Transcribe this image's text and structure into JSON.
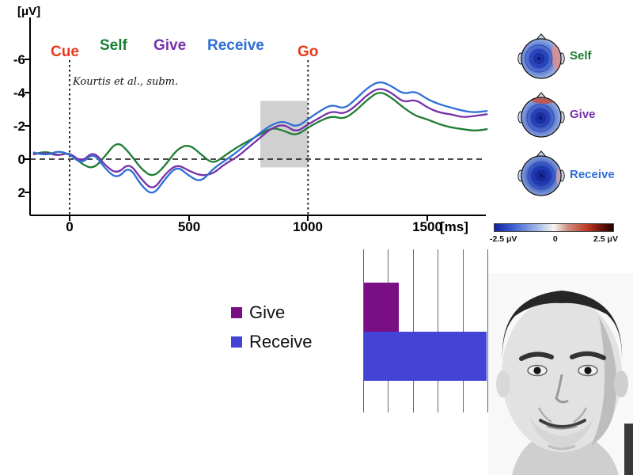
{
  "colors": {
    "cue_go": "#e8391d",
    "self": "#1e7d34",
    "give": "#7632a8",
    "receive": "#2f6fd6",
    "bar_give": "#7a0f85",
    "bar_receive": "#4343d6",
    "highlight": "#c4c4c4"
  },
  "erp": {
    "unit_label": "[μV]",
    "ms_label": "[ms]",
    "cue_label": "Cue",
    "go_label": "Go",
    "self_label": "Self",
    "give_label": "Give",
    "receive_label": "Receive",
    "annotation": "Kourtis et al., subm.",
    "y_ticks": [
      "-6",
      "-4",
      "-2",
      "0",
      "2"
    ],
    "x_ticks": [
      "0",
      "500",
      "1000",
      "1500"
    ]
  },
  "bar_legend": {
    "give": "Give",
    "receive": "Receive"
  },
  "topo": {
    "labels": [
      "Self",
      "Give",
      "Receive"
    ],
    "colorbar_min": "-2.5 μV",
    "colorbar_zero": "0",
    "colorbar_max": "2.5 μV"
  },
  "chart_data": [
    {
      "type": "line",
      "title": "",
      "xlabel": "[ms]",
      "ylabel": "[μV]",
      "xlim": [
        -180,
        1800
      ],
      "ylim": [
        2,
        -6
      ],
      "y_axis_inverted": true,
      "x_ticks": [
        0,
        500,
        1000,
        1500
      ],
      "y_ticks": [
        -6,
        -4,
        -2,
        0,
        2
      ],
      "events": [
        {
          "label": "Cue",
          "x": 0
        },
        {
          "label": "Go",
          "x": 1000
        }
      ],
      "highlight_region": {
        "x0": 800,
        "x1": 1000,
        "y0": 0.5,
        "y1": -3.5
      },
      "annotation": "Kourtis et al., subm.",
      "x": [
        -150,
        -100,
        -50,
        0,
        50,
        100,
        150,
        200,
        250,
        300,
        350,
        400,
        450,
        500,
        550,
        600,
        650,
        700,
        750,
        800,
        850,
        900,
        950,
        1000,
        1050,
        1100,
        1150,
        1200,
        1250,
        1300,
        1350,
        1400,
        1450,
        1500,
        1550,
        1600,
        1650,
        1700,
        1750
      ],
      "series": [
        {
          "name": "Self",
          "color": "#1e7d34",
          "values": [
            -0.3,
            -0.5,
            -0.2,
            -0.4,
            0.3,
            0.6,
            -0.2,
            -1.1,
            -0.4,
            0.6,
            1.1,
            0.4,
            -0.6,
            -0.9,
            -0.3,
            0.3,
            -0.2,
            -0.7,
            -1.1,
            -1.5,
            -1.9,
            -1.7,
            -1.4,
            -1.9,
            -2.3,
            -2.6,
            -2.4,
            -2.9,
            -3.6,
            -4.1,
            -3.7,
            -3.1,
            -2.6,
            -2.4,
            -2.1,
            -1.9,
            -1.8,
            -1.7,
            -1.8
          ]
        },
        {
          "name": "Give",
          "color": "#7632a8",
          "values": [
            -0.3,
            -0.4,
            -0.2,
            -0.4,
            0.2,
            -0.5,
            0.4,
            0.9,
            0.2,
            1.2,
            1.9,
            0.9,
            0.3,
            0.7,
            1.0,
            0.9,
            0.3,
            -0.1,
            -0.7,
            -1.3,
            -1.9,
            -2.1,
            -1.6,
            -2.1,
            -2.5,
            -2.9,
            -2.7,
            -3.2,
            -3.9,
            -4.3,
            -4.0,
            -3.4,
            -3.6,
            -3.1,
            -2.8,
            -2.7,
            -2.5,
            -2.6,
            -2.7
          ]
        },
        {
          "name": "Receive",
          "color": "#2f6fd6",
          "values": [
            -0.4,
            -0.2,
            -0.5,
            -0.3,
            0.3,
            -0.4,
            0.6,
            1.2,
            0.4,
            1.6,
            2.2,
            1.2,
            0.4,
            1.0,
            1.4,
            0.6,
            0.1,
            -0.4,
            -1.0,
            -1.6,
            -2.1,
            -2.3,
            -1.9,
            -2.4,
            -2.9,
            -3.3,
            -3.0,
            -3.6,
            -4.3,
            -4.7,
            -4.4,
            -3.9,
            -4.1,
            -3.6,
            -3.3,
            -3.1,
            -2.9,
            -2.8,
            -2.9
          ]
        }
      ]
    },
    {
      "type": "bar",
      "orientation": "horizontal",
      "title": "",
      "xlabel": "",
      "ylabel": "",
      "categories": [
        "Give",
        "Receive"
      ],
      "values": [
        1.4,
        4.95
      ],
      "colors": [
        "#7a0f85",
        "#4343d6"
      ],
      "xlim": [
        0,
        5
      ],
      "gridlines": [
        0,
        1,
        2,
        3,
        4,
        5
      ],
      "legend_position": "left"
    }
  ]
}
